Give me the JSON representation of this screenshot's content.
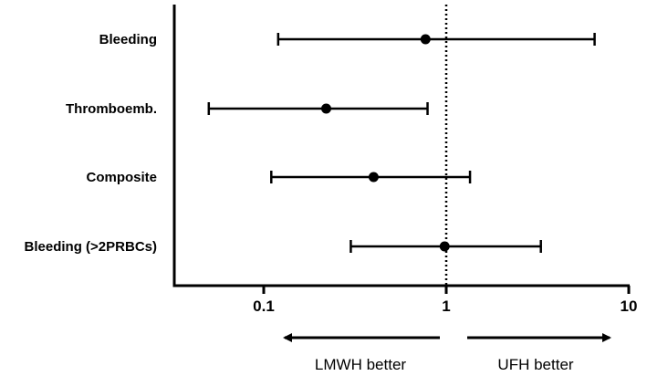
{
  "chart_data": {
    "type": "forest",
    "x_scale": "log",
    "xlim": [
      0.035,
      10
    ],
    "x_ticks": [
      {
        "value": 0.1,
        "label": "0.1"
      },
      {
        "value": 1,
        "label": "1"
      },
      {
        "value": 10,
        "label": "10"
      }
    ],
    "reference_line": 1,
    "rows": [
      {
        "label": "Bleeding",
        "estimate": 0.77,
        "lower": 0.12,
        "upper": 6.5
      },
      {
        "label": "Thromboemb.",
        "estimate": 0.22,
        "lower": 0.05,
        "upper": 0.79
      },
      {
        "label": "Composite",
        "estimate": 0.4,
        "lower": 0.11,
        "upper": 1.35
      },
      {
        "label": "Bleeding (>2PRBCs)",
        "estimate": 0.98,
        "lower": 0.3,
        "upper": 3.3
      }
    ],
    "annotations": {
      "left": "LMWH better",
      "right": "UFH better"
    },
    "colors": {
      "marks": "#000000",
      "background": "#ffffff"
    }
  }
}
